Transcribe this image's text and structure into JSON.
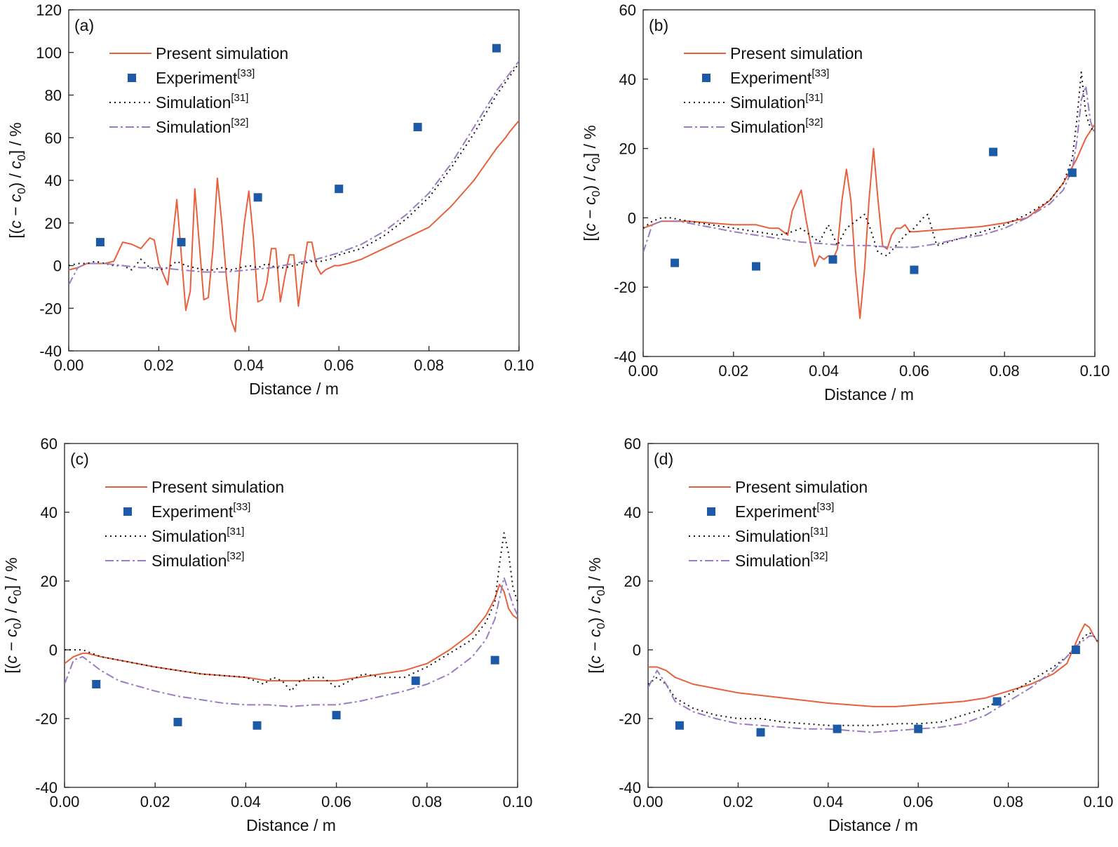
{
  "colors": {
    "present": "#e8603c",
    "experiment": "#1c5aa8",
    "sim31": "#111111",
    "sim32": "#9a7cc0"
  },
  "chart_data": [
    {
      "type": "line",
      "label": "(a)",
      "xlabel": "Distance / m",
      "ylabel": "[(c − c0) / c0] / %",
      "xlim": [
        0,
        0.1
      ],
      "ylim": [
        -40,
        120
      ],
      "xticks": [
        "0.00",
        "0.02",
        "0.04",
        "0.06",
        "0.08",
        "0.10"
      ],
      "yticks": [
        "120",
        "100",
        "80",
        "60",
        "40",
        "20",
        "0",
        "-20",
        "-40"
      ],
      "legend": [
        "Present simulation",
        "Experiment[33]",
        "Simulation[31]",
        "Simulation[32]"
      ],
      "series": [
        {
          "name": "Present simulation",
          "style": "solid",
          "x": [
            0,
            0.002,
            0.004,
            0.006,
            0.008,
            0.01,
            0.012,
            0.014,
            0.016,
            0.018,
            0.019,
            0.02,
            0.022,
            0.024,
            0.025,
            0.026,
            0.027,
            0.028,
            0.029,
            0.03,
            0.031,
            0.032,
            0.033,
            0.034,
            0.035,
            0.036,
            0.037,
            0.038,
            0.039,
            0.04,
            0.041,
            0.042,
            0.043,
            0.044,
            0.045,
            0.046,
            0.047,
            0.048,
            0.049,
            0.05,
            0.051,
            0.052,
            0.053,
            0.054,
            0.055,
            0.056,
            0.057,
            0.058,
            0.059,
            0.06,
            0.062,
            0.065,
            0.07,
            0.075,
            0.08,
            0.085,
            0.09,
            0.095,
            0.097,
            0.098,
            0.1
          ],
          "y": [
            -2,
            -1,
            1,
            1,
            1,
            2,
            11,
            10,
            8,
            13,
            12,
            1,
            -9,
            31,
            5,
            -21,
            -12,
            36,
            10,
            -16,
            -15,
            7,
            41,
            20,
            -5,
            -25,
            -31,
            0,
            20,
            35,
            13,
            -17,
            -16,
            -8,
            8,
            8,
            -17,
            -5,
            5,
            5,
            -19,
            -3,
            11,
            11,
            0,
            -4,
            -2,
            -1,
            0,
            0,
            1,
            3,
            8,
            13,
            18,
            28,
            40,
            55,
            60,
            63,
            68
          ]
        },
        {
          "name": "Experiment[33]",
          "style": "markers",
          "x": [
            0.007,
            0.025,
            0.042,
            0.06,
            0.0775,
            0.095
          ],
          "y": [
            11,
            11,
            32,
            36,
            65,
            102
          ]
        },
        {
          "name": "Simulation[31]",
          "style": "dotted",
          "x": [
            0,
            0.002,
            0.004,
            0.006,
            0.008,
            0.01,
            0.012,
            0.014,
            0.016,
            0.018,
            0.02,
            0.022,
            0.024,
            0.026,
            0.028,
            0.03,
            0.032,
            0.034,
            0.036,
            0.038,
            0.04,
            0.042,
            0.044,
            0.046,
            0.048,
            0.05,
            0.052,
            0.054,
            0.056,
            0.058,
            0.06,
            0.065,
            0.07,
            0.075,
            0.08,
            0.085,
            0.09,
            0.095,
            0.1
          ],
          "y": [
            0,
            1,
            1,
            2,
            1,
            0,
            0,
            -2,
            3,
            -1,
            -2,
            -1,
            2,
            0,
            -1,
            -2,
            -2,
            -1,
            -2,
            -1,
            0,
            -1,
            1,
            -1,
            -1,
            0,
            1,
            2,
            2,
            3,
            5,
            8,
            14,
            22,
            32,
            46,
            62,
            80,
            95
          ]
        },
        {
          "name": "Simulation[32]",
          "style": "dashdot",
          "x": [
            0,
            0.002,
            0.004,
            0.008,
            0.012,
            0.016,
            0.02,
            0.025,
            0.03,
            0.035,
            0.04,
            0.045,
            0.05,
            0.055,
            0.06,
            0.065,
            0.07,
            0.075,
            0.08,
            0.085,
            0.09,
            0.095,
            0.1
          ],
          "y": [
            -9,
            -1,
            1,
            1,
            0,
            -1,
            -1,
            -2,
            -3,
            -3,
            -2,
            -1,
            1,
            3,
            6,
            10,
            16,
            24,
            34,
            48,
            65,
            82,
            96
          ]
        }
      ]
    },
    {
      "type": "line",
      "label": "(b)",
      "xlabel": "Distance / m",
      "ylabel": "[(c − c0) / c0] / %",
      "xlim": [
        0,
        0.1
      ],
      "ylim": [
        -40,
        60
      ],
      "xticks": [
        "0.00",
        "0.02",
        "0.04",
        "0.06",
        "0.08",
        "0.10"
      ],
      "yticks": [
        "60",
        "40",
        "20",
        "0",
        "-20",
        "-40"
      ],
      "legend": [
        "Present simulation",
        "Experiment[33]",
        "Simulation[31]",
        "Simulation[32]"
      ],
      "series": [
        {
          "name": "Present simulation",
          "style": "solid",
          "x": [
            0,
            0.002,
            0.004,
            0.01,
            0.02,
            0.025,
            0.028,
            0.03,
            0.032,
            0.033,
            0.035,
            0.036,
            0.038,
            0.039,
            0.04,
            0.041,
            0.042,
            0.043,
            0.044,
            0.045,
            0.046,
            0.047,
            0.048,
            0.049,
            0.05,
            0.051,
            0.052,
            0.053,
            0.054,
            0.055,
            0.056,
            0.057,
            0.058,
            0.059,
            0.06,
            0.065,
            0.07,
            0.075,
            0.08,
            0.085,
            0.09,
            0.093,
            0.096,
            0.098,
            0.1
          ],
          "y": [
            -3,
            -2,
            -1,
            -1,
            -2,
            -2,
            -3,
            -3,
            -5,
            2,
            8,
            0,
            -14,
            -11,
            -12,
            -11,
            -12,
            -9,
            5,
            14,
            5,
            -15,
            -29,
            -15,
            5,
            20,
            5,
            -8,
            -9,
            -5,
            -3,
            -3,
            -2,
            -4,
            -4,
            -3.5,
            -3,
            -2.5,
            -1.5,
            0,
            5,
            10,
            17,
            23,
            27
          ]
        },
        {
          "name": "Experiment[33]",
          "style": "markers",
          "x": [
            0.007,
            0.025,
            0.042,
            0.06,
            0.0775,
            0.095
          ],
          "y": [
            -13,
            -14,
            -12,
            -15,
            19,
            13
          ]
        },
        {
          "name": "Simulation[31]",
          "style": "dotted",
          "x": [
            0,
            0.002,
            0.004,
            0.006,
            0.01,
            0.015,
            0.02,
            0.025,
            0.03,
            0.033,
            0.035,
            0.037,
            0.039,
            0.041,
            0.043,
            0.045,
            0.047,
            0.049,
            0.05,
            0.052,
            0.054,
            0.056,
            0.058,
            0.06,
            0.062,
            0.063,
            0.065,
            0.07,
            0.075,
            0.08,
            0.085,
            0.09,
            0.093,
            0.095,
            0.096,
            0.097,
            0.098,
            0.099,
            0.1
          ],
          "y": [
            -3,
            -1,
            0,
            0,
            -1,
            -2,
            -3,
            -4,
            -5,
            -4,
            -3,
            -5,
            -7,
            -2,
            -8,
            -3,
            -1,
            1,
            -2,
            -10,
            -11,
            -8,
            -5,
            -3,
            0,
            1,
            -8,
            -6,
            -4,
            -2,
            1,
            5,
            10,
            17,
            28,
            42,
            30,
            26,
            25
          ]
        },
        {
          "name": "Simulation[32]",
          "style": "dashdot",
          "x": [
            0,
            0.002,
            0.004,
            0.008,
            0.012,
            0.016,
            0.02,
            0.025,
            0.03,
            0.035,
            0.04,
            0.045,
            0.05,
            0.055,
            0.06,
            0.065,
            0.07,
            0.075,
            0.08,
            0.085,
            0.09,
            0.093,
            0.095,
            0.096,
            0.097,
            0.098,
            0.099,
            0.1
          ],
          "y": [
            -10,
            -2,
            -1,
            -1,
            -2,
            -3,
            -4,
            -5,
            -6,
            -7,
            -7.5,
            -8,
            -8,
            -8.5,
            -8.5,
            -7.5,
            -6,
            -5,
            -3,
            0,
            4,
            8,
            14,
            22,
            34,
            38,
            28,
            24
          ]
        }
      ]
    },
    {
      "type": "line",
      "label": "(c)",
      "xlabel": "Distance / m",
      "ylabel": "[(c − c0) / c0] / %",
      "xlim": [
        0,
        0.1
      ],
      "ylim": [
        -40,
        60
      ],
      "xticks": [
        "0.00",
        "0.02",
        "0.04",
        "0.06",
        "0.08",
        "0.10"
      ],
      "yticks": [
        "60",
        "40",
        "20",
        "0",
        "-20",
        "-40"
      ],
      "legend": [
        "Present simulation",
        "Experiment[33]",
        "Simulation[31]",
        "Simulation[32]"
      ],
      "series": [
        {
          "name": "Present simulation",
          "style": "solid",
          "x": [
            0,
            0.002,
            0.004,
            0.005,
            0.008,
            0.012,
            0.02,
            0.03,
            0.04,
            0.045,
            0.05,
            0.055,
            0.06,
            0.065,
            0.07,
            0.075,
            0.08,
            0.085,
            0.09,
            0.093,
            0.095,
            0.096,
            0.097,
            0.098,
            0.099,
            0.1
          ],
          "y": [
            -4,
            -2,
            -1,
            -1,
            -2,
            -3,
            -5,
            -7,
            -8,
            -9,
            -9,
            -9,
            -9,
            -8,
            -7,
            -6,
            -4,
            0,
            5,
            10,
            15,
            19,
            17,
            12,
            10,
            9
          ]
        },
        {
          "name": "Experiment[33]",
          "style": "markers",
          "x": [
            0.007,
            0.025,
            0.0425,
            0.06,
            0.0775,
            0.095
          ],
          "y": [
            -10,
            -21,
            -22,
            -19,
            -9,
            -3
          ]
        },
        {
          "name": "Simulation[31]",
          "style": "dotted",
          "x": [
            0,
            0.002,
            0.004,
            0.008,
            0.012,
            0.02,
            0.03,
            0.04,
            0.044,
            0.046,
            0.048,
            0.05,
            0.052,
            0.055,
            0.057,
            0.06,
            0.063,
            0.066,
            0.07,
            0.075,
            0.08,
            0.085,
            0.09,
            0.093,
            0.095,
            0.096,
            0.097,
            0.098,
            0.099,
            0.1
          ],
          "y": [
            0,
            0,
            0,
            -2,
            -3,
            -5,
            -7,
            -8,
            -10,
            -8,
            -9,
            -12,
            -9,
            -8,
            -8,
            -11,
            -9,
            -7,
            -8,
            -8,
            -5,
            -1,
            3,
            8,
            14,
            25,
            34,
            28,
            18,
            14
          ]
        },
        {
          "name": "Simulation[32]",
          "style": "dashdot",
          "x": [
            0,
            0.002,
            0.004,
            0.008,
            0.012,
            0.02,
            0.025,
            0.03,
            0.035,
            0.04,
            0.045,
            0.05,
            0.055,
            0.06,
            0.065,
            0.07,
            0.075,
            0.08,
            0.085,
            0.09,
            0.093,
            0.095,
            0.096,
            0.097,
            0.098,
            0.099,
            0.1
          ],
          "y": [
            -10,
            -3,
            -2,
            -6,
            -9,
            -12,
            -13.5,
            -14.5,
            -15.5,
            -16,
            -16,
            -16.5,
            -16,
            -16,
            -15,
            -13.5,
            -12,
            -10,
            -7,
            -2,
            3,
            9,
            15,
            21,
            17,
            13,
            10
          ]
        }
      ]
    },
    {
      "type": "line",
      "label": "(d)",
      "xlabel": "Distance / m",
      "ylabel": "[(c − c0) / c0] / %",
      "xlim": [
        0,
        0.1
      ],
      "ylim": [
        -40,
        60
      ],
      "xticks": [
        "0.00",
        "0.02",
        "0.04",
        "0.06",
        "0.08",
        "0.10"
      ],
      "yticks": [
        "60",
        "40",
        "20",
        "0",
        "-20",
        "-40"
      ],
      "legend": [
        "Present simulation",
        "Experiment[33]",
        "Simulation[31]",
        "Simulation[32]"
      ],
      "series": [
        {
          "name": "Present simulation",
          "style": "solid",
          "x": [
            0,
            0.002,
            0.004,
            0.006,
            0.01,
            0.02,
            0.03,
            0.04,
            0.05,
            0.055,
            0.06,
            0.065,
            0.07,
            0.075,
            0.08,
            0.085,
            0.09,
            0.093,
            0.095,
            0.096,
            0.097,
            0.098,
            0.099,
            0.1
          ],
          "y": [
            -5,
            -5,
            -6,
            -8,
            -10,
            -12.5,
            -14,
            -15.5,
            -16.5,
            -16.5,
            -16,
            -15.5,
            -15,
            -14,
            -12,
            -10,
            -7,
            -4,
            2,
            5,
            7.5,
            6.5,
            4,
            2
          ]
        },
        {
          "name": "Experiment[33]",
          "style": "markers",
          "x": [
            0.007,
            0.025,
            0.042,
            0.06,
            0.0775,
            0.095
          ],
          "y": [
            -22,
            -24,
            -23,
            -23,
            -15,
            0
          ]
        },
        {
          "name": "Simulation[31]",
          "style": "dotted",
          "x": [
            0,
            0.002,
            0.004,
            0.006,
            0.01,
            0.015,
            0.02,
            0.025,
            0.03,
            0.035,
            0.04,
            0.045,
            0.05,
            0.055,
            0.06,
            0.065,
            0.07,
            0.075,
            0.08,
            0.085,
            0.09,
            0.093,
            0.095,
            0.097,
            0.098,
            0.099,
            0.1
          ],
          "y": [
            -10,
            -8,
            -10,
            -14,
            -17,
            -19,
            -20,
            -20,
            -21,
            -21.5,
            -22,
            -22,
            -22,
            -21.5,
            -21.5,
            -21,
            -19,
            -17,
            -13,
            -9,
            -5,
            -2,
            1,
            4,
            5,
            4,
            2
          ]
        },
        {
          "name": "Simulation[32]",
          "style": "dashdot",
          "x": [
            0,
            0.002,
            0.004,
            0.006,
            0.01,
            0.015,
            0.02,
            0.025,
            0.03,
            0.035,
            0.04,
            0.045,
            0.05,
            0.055,
            0.06,
            0.065,
            0.07,
            0.075,
            0.08,
            0.085,
            0.09,
            0.093,
            0.095,
            0.097,
            0.098,
            0.099,
            0.1
          ],
          "y": [
            -11,
            -6,
            -10,
            -15,
            -18,
            -20,
            -21.5,
            -22,
            -22.5,
            -23,
            -23,
            -23.5,
            -24,
            -23.5,
            -23,
            -22.5,
            -21.5,
            -19,
            -15,
            -11,
            -6,
            -2,
            1,
            3,
            4,
            4,
            2
          ]
        }
      ]
    }
  ]
}
